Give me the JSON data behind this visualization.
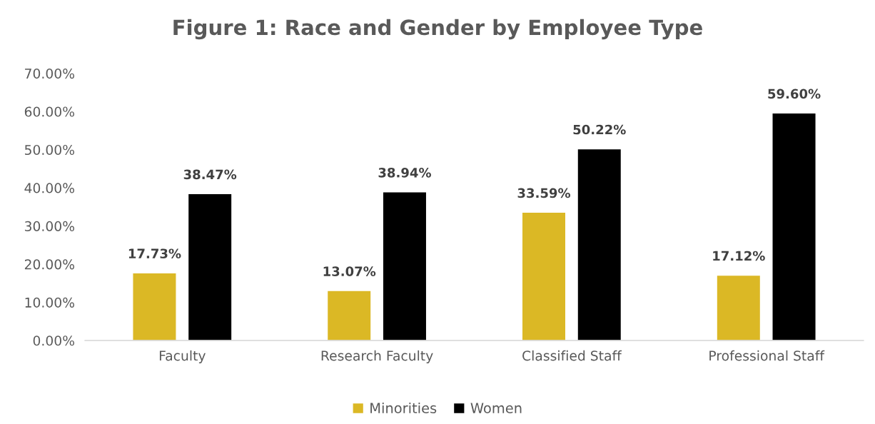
{
  "chart_data": {
    "type": "bar",
    "title": "Figure 1: Race and Gender by Employee Type",
    "categories": [
      "Faculty",
      "Research Faculty",
      "Classified Staff",
      "Professional Staff"
    ],
    "series": [
      {
        "name": "Minorities",
        "color": "#dbb825",
        "values": [
          17.73,
          13.07,
          33.59,
          17.12
        ],
        "value_labels": [
          "17.73%",
          "13.07%",
          "33.59%",
          "17.12%"
        ]
      },
      {
        "name": "Women",
        "color": "#000000",
        "values": [
          38.47,
          38.94,
          50.22,
          59.6
        ],
        "value_labels": [
          "38.47%",
          "38.94%",
          "50.22%",
          "59.60%"
        ]
      }
    ],
    "ylim": [
      0,
      70
    ],
    "yticks": [
      {
        "value": 0,
        "label": "0.00%"
      },
      {
        "value": 10,
        "label": "10.00%"
      },
      {
        "value": 20,
        "label": "20.00%"
      },
      {
        "value": 30,
        "label": "30.00%"
      },
      {
        "value": 40,
        "label": "40.00%"
      },
      {
        "value": 50,
        "label": "50.00%"
      },
      {
        "value": 60,
        "label": "60.00%"
      },
      {
        "value": 70,
        "label": "70.00%"
      }
    ],
    "grid": false,
    "legend": "bottom"
  }
}
